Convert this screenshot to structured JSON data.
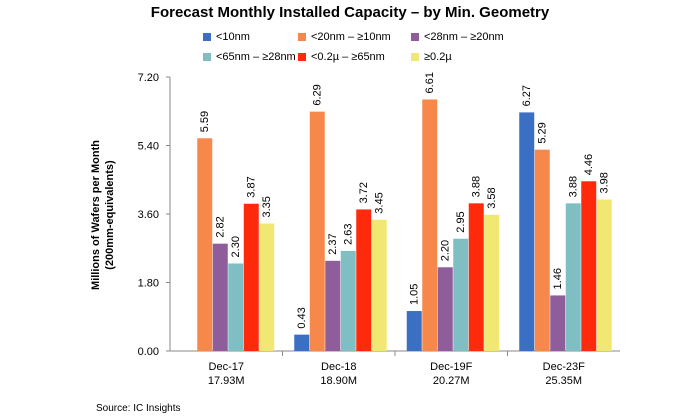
{
  "chart_data": {
    "type": "bar",
    "title": "Forecast Monthly Installed Capacity – by Min. Geometry",
    "ylabel": [
      "Millions of Wafers per Month",
      "(200mm-equivalents)"
    ],
    "ylim": [
      0,
      7.2
    ],
    "yticks": [
      "0.00",
      "1.80",
      "3.60",
      "5.40",
      "7.20"
    ],
    "grid": false,
    "legend_position": "top",
    "categories": [
      {
        "label": "Dec-17",
        "total": "17.93M"
      },
      {
        "label": "Dec-18",
        "total": "18.90M"
      },
      {
        "label": "Dec-19F",
        "total": "20.27M"
      },
      {
        "label": "Dec-23F",
        "total": "25.35M"
      }
    ],
    "series": [
      {
        "name": "<10nm",
        "color": "#3a6fc4",
        "values": [
          null,
          0.43,
          1.05,
          6.27
        ],
        "labels": [
          "",
          "0.43",
          "1.05",
          "6.27"
        ]
      },
      {
        "name": "<20nm – ≥10nm",
        "color": "#f5884a",
        "values": [
          5.59,
          6.29,
          6.61,
          5.29
        ],
        "labels": [
          "5.59",
          "6.29",
          "6.61",
          "5.29"
        ]
      },
      {
        "name": "<28nm – ≥20nm",
        "color": "#8e5d9a",
        "values": [
          2.82,
          2.37,
          2.2,
          1.46
        ],
        "labels": [
          "2.82",
          "2.37",
          "2.20",
          "1.46"
        ]
      },
      {
        "name": "<65nm – ≥28nm",
        "color": "#7fbfc3",
        "values": [
          2.3,
          2.63,
          2.95,
          3.88
        ],
        "labels": [
          "2.30",
          "2.63",
          "2.95",
          "3.88"
        ]
      },
      {
        "name": "<0.2µ – ≥65nm",
        "color": "#ff2a0c",
        "values": [
          3.87,
          3.72,
          3.88,
          4.46
        ],
        "labels": [
          "3.87",
          "3.72",
          "3.88",
          "4.46"
        ]
      },
      {
        "name": "≥0.2µ",
        "color": "#f0e873",
        "values": [
          3.35,
          3.45,
          3.58,
          3.98
        ],
        "labels": [
          "3.35",
          "3.45",
          "3.58",
          "3.98"
        ]
      }
    ]
  },
  "source": "Source:  IC Insights"
}
